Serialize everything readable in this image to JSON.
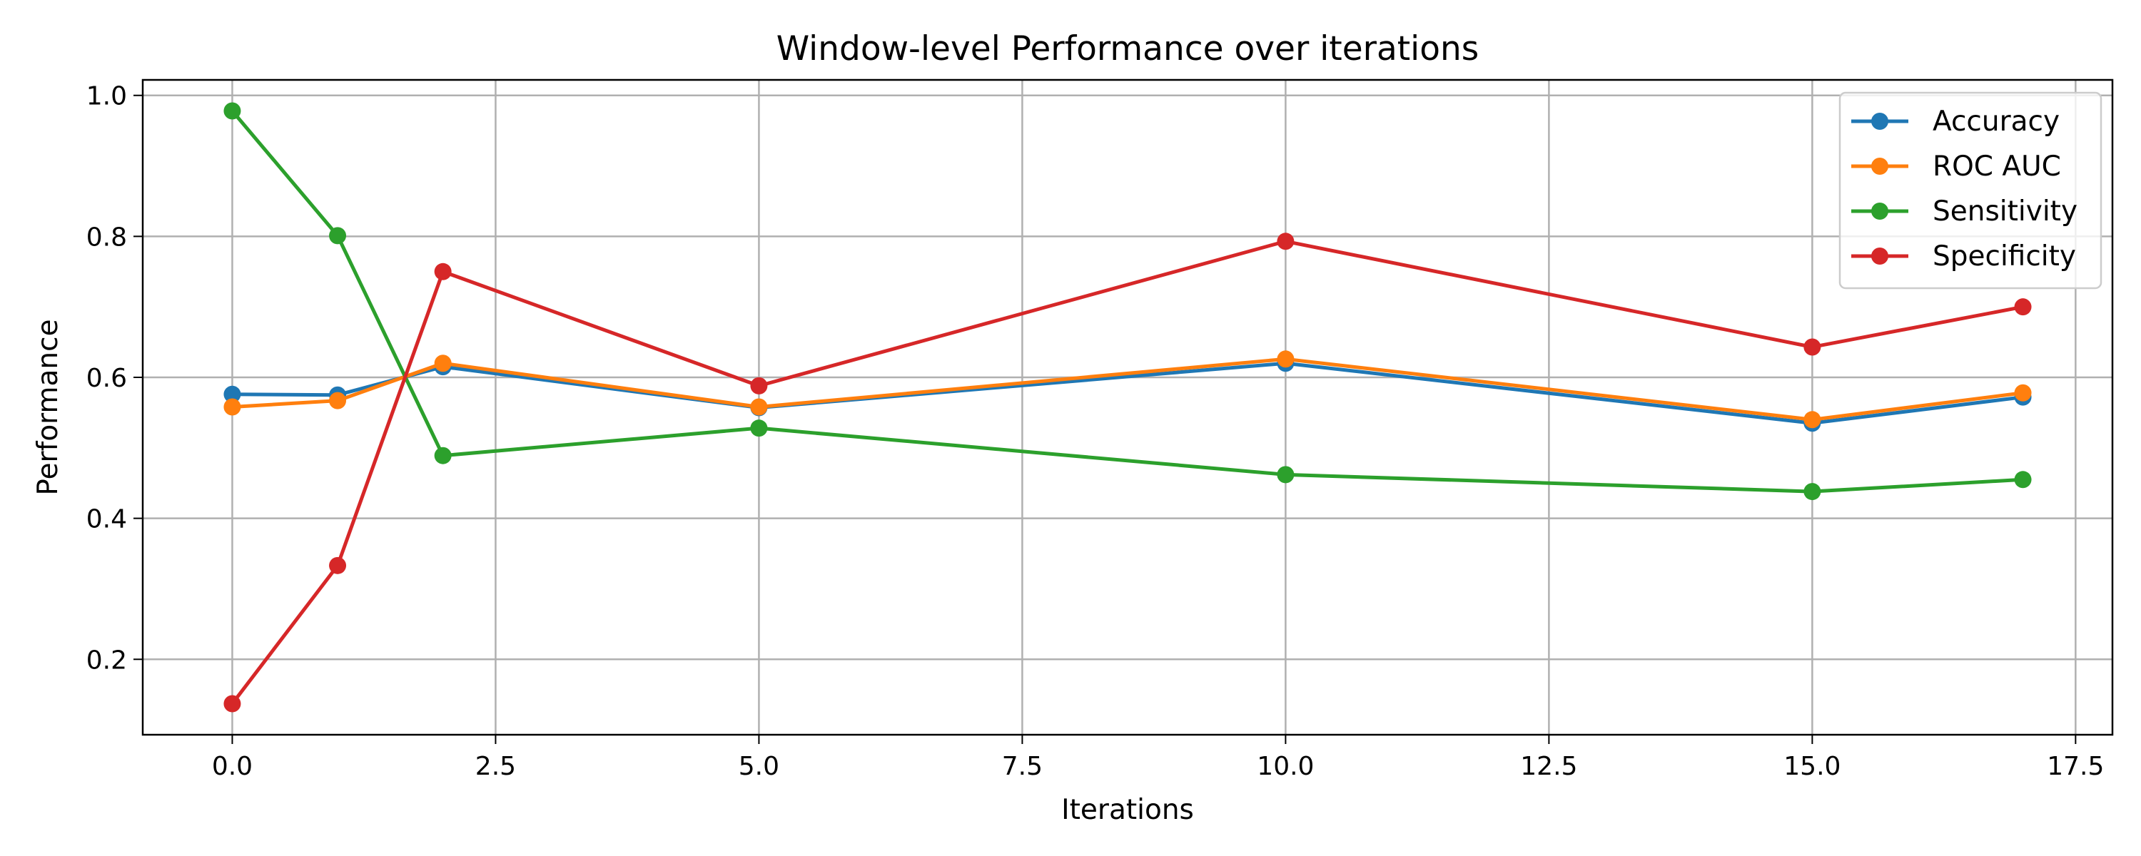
{
  "chart_data": {
    "type": "line",
    "title": "Window-level Performance over iterations",
    "xlabel": "Iterations",
    "ylabel": "Performance",
    "x": [
      0,
      1,
      2,
      5,
      10,
      15,
      17
    ],
    "xlim": [
      -0.85,
      17.85
    ],
    "ylim": [
      0.093,
      1.022
    ],
    "xticks": [
      0.0,
      2.5,
      5.0,
      7.5,
      10.0,
      12.5,
      15.0,
      17.5
    ],
    "xtick_labels": [
      "0.0",
      "2.5",
      "5.0",
      "7.5",
      "10.0",
      "12.5",
      "15.0",
      "17.5"
    ],
    "yticks": [
      0.2,
      0.4,
      0.6,
      0.8,
      1.0
    ],
    "ytick_labels": [
      "0.2",
      "0.4",
      "0.6",
      "0.8",
      "1.0"
    ],
    "grid": true,
    "legend_position": "top-right",
    "series": [
      {
        "name": "Accuracy",
        "color": "#1f77b4",
        "values": [
          0.576,
          0.575,
          0.615,
          0.557,
          0.62,
          0.535,
          0.572
        ]
      },
      {
        "name": "ROC AUC",
        "color": "#ff7f0e",
        "values": [
          0.558,
          0.567,
          0.62,
          0.558,
          0.626,
          0.54,
          0.578
        ]
      },
      {
        "name": "Sensitivity",
        "color": "#2ca02c",
        "values": [
          0.978,
          0.801,
          0.489,
          0.528,
          0.462,
          0.438,
          0.455
        ]
      },
      {
        "name": "Specificity",
        "color": "#d62728",
        "values": [
          0.137,
          0.333,
          0.75,
          0.588,
          0.793,
          0.643,
          0.7
        ]
      }
    ]
  }
}
